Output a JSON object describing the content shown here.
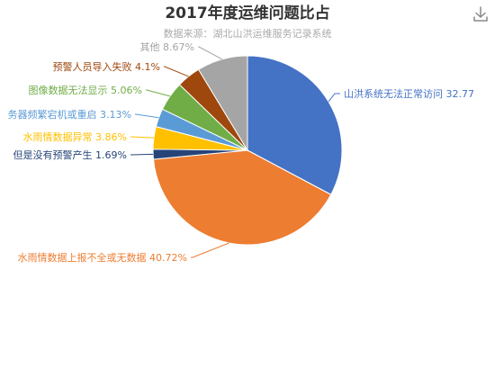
{
  "toolbox": {
    "download_icon": "download-icon"
  },
  "chart_data": {
    "type": "pie",
    "title": "2017年度运维问题比占",
    "subtitle": "数据来源：湖北山洪运维服务记录系统",
    "slices": [
      {
        "label": "山洪系统无法正常访问",
        "value": 32.77,
        "value_text": "32.77",
        "color": "#4472c4"
      },
      {
        "label": "水雨情数据上报不全或无数据",
        "value": 40.72,
        "value_text": "40.72%",
        "color": "#ed7d31"
      },
      {
        "label": "但是没有预警产生",
        "value": 1.69,
        "value_text": "1.69%",
        "color": "#264478"
      },
      {
        "label": "水雨情数据异常",
        "value": 3.86,
        "value_text": "3.86%",
        "color": "#ffc000"
      },
      {
        "label": "务器频繁宕机或重启",
        "value": 3.13,
        "value_text": "3.13%",
        "color": "#5b9bd5"
      },
      {
        "label": "图像数据无法显示",
        "value": 5.06,
        "value_text": "5.06%",
        "color": "#70ad47"
      },
      {
        "label": "预警人员导入失败",
        "value": 4.1,
        "value_text": "4.1%",
        "color": "#9e480e"
      },
      {
        "label": "其他",
        "value": 8.67,
        "value_text": "8.67%",
        "color": "#a5a5a5"
      }
    ]
  }
}
